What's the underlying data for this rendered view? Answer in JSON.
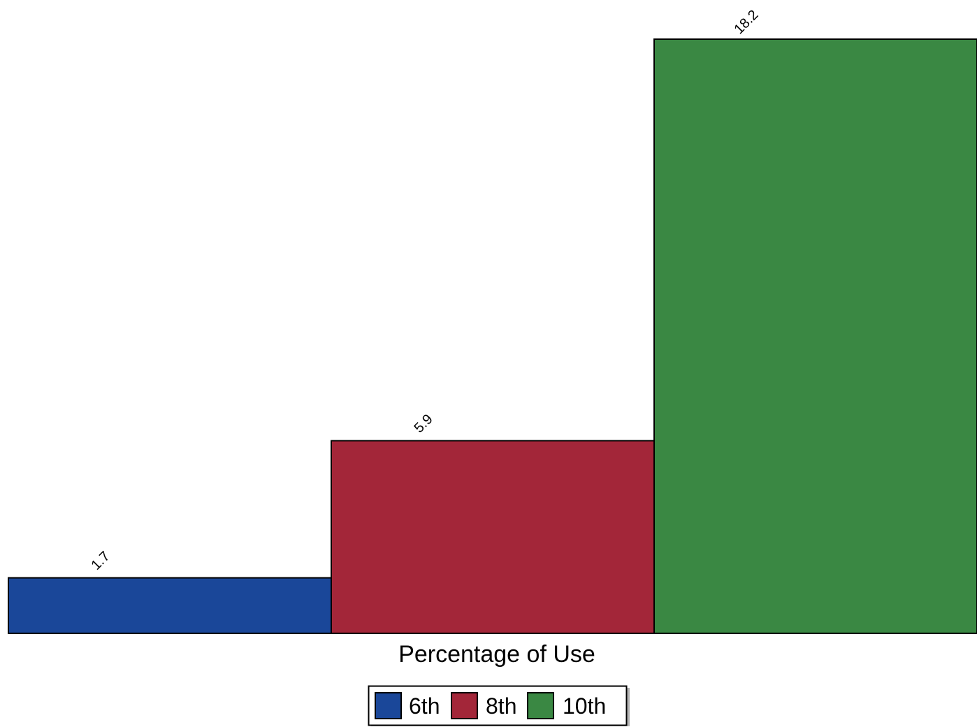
{
  "chart_data": {
    "type": "bar",
    "categories": [
      "6th",
      "8th",
      "10th"
    ],
    "values": [
      1.7,
      5.9,
      18.2
    ],
    "value_labels": [
      "1.7",
      "5.9",
      "18.2"
    ],
    "xlabel": "Percentage of Use",
    "ylabel": "",
    "ylim": [
      0,
      18.2
    ],
    "grid": false,
    "legend_position": "bottom-center",
    "colors": [
      "#1a4799",
      "#a32639",
      "#3a8843"
    ]
  }
}
